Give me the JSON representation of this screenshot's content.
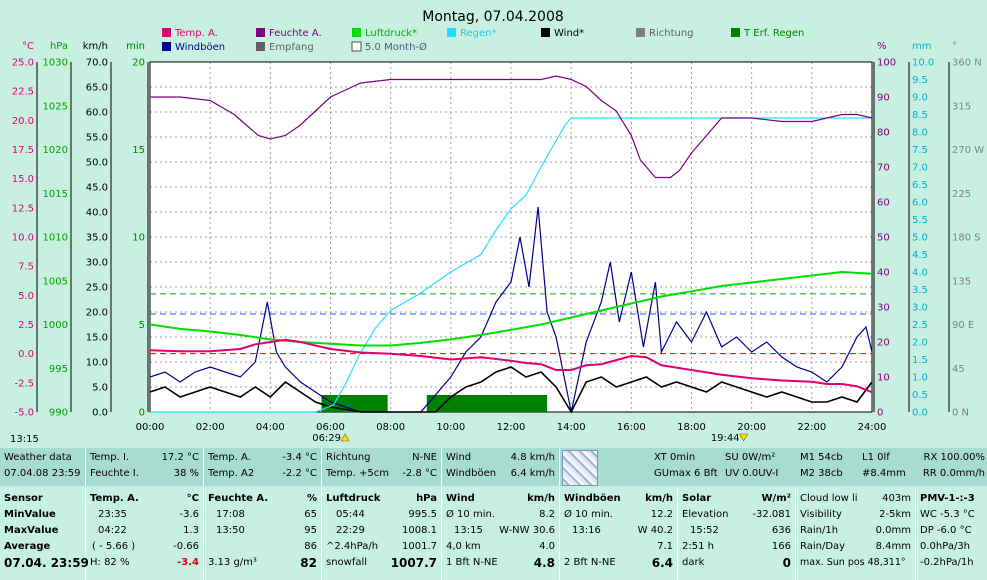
{
  "chart_data": {
    "type": "line",
    "title": "Montag, 07.04.2008",
    "x_ticks": [
      "00:00",
      "02:00",
      "04:00",
      "06:00",
      "08:00",
      "10:00",
      "12:00",
      "14:00",
      "16:00",
      "18:00",
      "20:00",
      "22:00",
      "24:00"
    ],
    "axes": {
      "temp": {
        "unit": "°C",
        "ticks": [
          "-5.0",
          "-2.5",
          "0.0",
          "2.5",
          "5.0",
          "7.5",
          "10.0",
          "12.5",
          "15.0",
          "17.5",
          "20.0",
          "22.5",
          "25.0"
        ],
        "color": "#e0006e"
      },
      "pressure": {
        "unit": "hPa",
        "ticks": [
          "990",
          "995",
          "1000",
          "1005",
          "1010",
          "1015",
          "1020",
          "1025",
          "1030"
        ],
        "color": "#00a000"
      },
      "wind": {
        "unit": "km/h",
        "ticks": [
          "0.0",
          "5.0",
          "10.0",
          "15.0",
          "20.0",
          "25.0",
          "30.0",
          "35.0",
          "40.0",
          "45.0",
          "50.0",
          "55.0",
          "60.0",
          "65.0",
          "70.0"
        ],
        "color": "#000000"
      },
      "minutes": {
        "unit": "min",
        "ticks": [
          "0",
          "5",
          "10",
          "15",
          "20"
        ],
        "color": "#008000"
      },
      "humidity": {
        "unit": "%",
        "ticks": [
          "0",
          "10",
          "20",
          "30",
          "40",
          "50",
          "60",
          "70",
          "80",
          "90",
          "100"
        ],
        "color": "#800080"
      },
      "rain": {
        "unit": "mm",
        "ticks": [
          "0.0",
          "0.5",
          "1.0",
          "1.5",
          "2.0",
          "2.5",
          "3.0",
          "3.5",
          "4.0",
          "4.5",
          "5.0",
          "5.5",
          "6.0",
          "6.5",
          "7.0",
          "7.5",
          "8.0",
          "8.5",
          "9.0",
          "9.5",
          "10.0"
        ],
        "color": "#00b0d0"
      },
      "direction": {
        "unit": "°",
        "ticks": [
          "0 N",
          "45",
          "90 E",
          "135",
          "180 S",
          "225",
          "270 W",
          "315",
          "360 N"
        ],
        "color": "#808080"
      }
    },
    "legend": [
      {
        "name": "Temp. A.",
        "color": "#e0006e"
      },
      {
        "name": "Feuchte A.",
        "color": "#800080"
      },
      {
        "name": "Luftdruck*",
        "color": "#00e000"
      },
      {
        "name": "Regen*",
        "color": "#20e0ff"
      },
      {
        "name": "Wind*",
        "color": "#000000"
      },
      {
        "name": "Richtung",
        "color": "#808080"
      },
      {
        "name": "T Erf. Regen",
        "color": "#008000"
      },
      {
        "name": "Windböen",
        "color": "#000090"
      },
      {
        "name": "Empfang",
        "color": "#606060"
      },
      {
        "name": "5.0 Month-Ø",
        "color": "#ffffff"
      }
    ],
    "series": [
      {
        "name": "Temp. A.",
        "axis": "temp",
        "color": "#e0006e",
        "x": [
          0,
          1,
          2,
          3,
          3.5,
          4,
          4.5,
          5,
          6,
          7,
          8,
          9,
          10,
          11,
          12,
          12.5,
          13,
          13.5,
          14,
          14.5,
          15,
          16,
          16.5,
          17,
          18,
          19,
          20,
          21,
          22,
          22.5,
          23,
          23.5,
          24
        ],
        "values": [
          0.3,
          0.2,
          0.2,
          0.4,
          0.8,
          1.0,
          1.2,
          1.0,
          0.4,
          0.1,
          0.0,
          -0.2,
          -0.5,
          -0.3,
          -0.6,
          -0.8,
          -0.9,
          -1.4,
          -1.4,
          -1.0,
          -0.9,
          -0.2,
          -0.3,
          -1.0,
          -1.4,
          -1.8,
          -2.1,
          -2.3,
          -2.4,
          -2.6,
          -2.6,
          -2.8,
          -3.3
        ]
      },
      {
        "name": "Feuchte A.",
        "axis": "humidity",
        "color": "#800080",
        "x": [
          0,
          1,
          2,
          2.8,
          3.2,
          3.6,
          4,
          4.5,
          5,
          5.5,
          6,
          6.5,
          7,
          8,
          9,
          10,
          11,
          12,
          13,
          13.5,
          14,
          14.5,
          15,
          15.5,
          16,
          16.3,
          16.8,
          17.3,
          17.6,
          18,
          18.5,
          19,
          20,
          21,
          22,
          23,
          23.5,
          24
        ],
        "values": [
          90,
          90,
          89,
          85,
          82,
          79,
          78,
          79,
          82,
          86,
          90,
          92,
          94,
          95,
          95,
          95,
          95,
          95,
          95,
          96,
          95,
          93,
          89,
          86,
          79,
          72,
          67,
          67,
          69,
          74,
          79,
          84,
          84,
          83,
          83,
          85,
          85,
          84
        ]
      },
      {
        "name": "Luftdruck*",
        "axis": "pressure",
        "color": "#00e000",
        "x": [
          0,
          1,
          2,
          3,
          4,
          5,
          6,
          7,
          8,
          9,
          10,
          11,
          12,
          13,
          14,
          15,
          16,
          17,
          18,
          19,
          20,
          21,
          22,
          23,
          24
        ],
        "values": [
          1000.0,
          999.5,
          999.2,
          998.8,
          998.3,
          998.0,
          997.8,
          997.6,
          997.6,
          997.9,
          998.3,
          998.8,
          999.4,
          1000.0,
          1000.8,
          1001.6,
          1002.4,
          1003.2,
          1003.8,
          1004.4,
          1004.8,
          1005.2,
          1005.6,
          1006.0,
          1005.8
        ]
      },
      {
        "name": "Regen*",
        "axis": "rain",
        "color": "#20e0ff",
        "x": [
          0,
          5.5,
          6.1,
          6.5,
          7,
          7.5,
          8,
          9,
          10,
          11,
          11.5,
          12,
          12.5,
          13,
          13.4,
          13.8,
          14,
          15,
          16,
          17,
          18,
          19,
          20,
          21,
          22,
          23,
          24
        ],
        "values": [
          0,
          0,
          0.2,
          0.8,
          1.7,
          2.4,
          2.9,
          3.4,
          4.0,
          4.5,
          5.2,
          5.8,
          6.2,
          7.0,
          7.6,
          8.2,
          8.4,
          8.4,
          8.4,
          8.4,
          8.4,
          8.4,
          8.4,
          8.4,
          8.4,
          8.4,
          8.4
        ]
      },
      {
        "name": "Wind*",
        "axis": "wind",
        "color": "#000000",
        "x": [
          0,
          0.5,
          1,
          1.5,
          2,
          2.5,
          3,
          3.5,
          4,
          4.5,
          5,
          5.5,
          6,
          6.5,
          7,
          7.5,
          8,
          8.5,
          9,
          9.5,
          10,
          10.5,
          11,
          11.5,
          12,
          12.5,
          13,
          13.5,
          14,
          14.5,
          15,
          15.5,
          16,
          16.5,
          17,
          17.5,
          18,
          18.5,
          19,
          19.5,
          20,
          20.5,
          21,
          21.5,
          22,
          22.5,
          23,
          23.5,
          24
        ],
        "values": [
          4,
          5,
          3,
          4,
          5,
          4,
          3,
          5,
          3,
          6,
          4,
          2,
          1,
          0.5,
          0,
          0,
          0,
          0,
          0,
          0,
          3,
          5,
          6,
          8,
          9,
          7,
          8,
          5,
          0,
          6,
          7,
          5,
          6,
          7,
          5,
          6,
          5,
          4,
          6,
          5,
          4,
          3,
          4,
          3,
          2,
          2,
          3,
          2,
          6
        ]
      },
      {
        "name": "Windböen",
        "axis": "wind",
        "color": "#000090",
        "x": [
          0,
          0.5,
          1,
          1.5,
          2,
          2.5,
          3,
          3.5,
          3.9,
          4.2,
          4.5,
          5,
          5.5,
          6,
          6.5,
          7,
          8,
          9,
          10,
          10.5,
          11,
          11.5,
          12,
          12.3,
          12.6,
          12.9,
          13.2,
          13.5,
          14,
          14.5,
          15,
          15.3,
          15.6,
          16,
          16.4,
          16.8,
          17,
          17.5,
          18,
          18.5,
          19,
          19.5,
          20,
          20.5,
          21,
          21.5,
          22,
          22.5,
          23,
          23.5,
          23.8,
          24
        ],
        "values": [
          7,
          8,
          6,
          8,
          9,
          8,
          7,
          10,
          22,
          12,
          9,
          6,
          4,
          2,
          1,
          0,
          0,
          0,
          7,
          12,
          15,
          22,
          26,
          35,
          25,
          41,
          20,
          15,
          0,
          14,
          22,
          30,
          18,
          28,
          13,
          26,
          12,
          18,
          14,
          20,
          13,
          15,
          12,
          14,
          11,
          9,
          8,
          6,
          9,
          15,
          17,
          12
        ]
      }
    ],
    "bands": {
      "t_erf_regen": [
        [
          5.7,
          7.9
        ],
        [
          9.2,
          13.2
        ]
      ],
      "dashed_refs": [
        {
          "axis": "pressure",
          "value": 1003.5,
          "color": "#00b000"
        },
        {
          "axis": "temp",
          "value": 3.4,
          "color": "#2060ff"
        },
        {
          "axis": "temp",
          "value": 0.0,
          "color": "#e00000"
        }
      ]
    },
    "sun_markers": {
      "sunrise": "06:29",
      "sunset": "19:44",
      "start": "13:15"
    }
  },
  "panel": {
    "weather": {
      "title": "Weather data",
      "date": "07.04.08 23:59"
    },
    "inside": {
      "temp_label": "Temp. I.",
      "temp_value": "17.2 °C",
      "hum_label": "Feuchte I.",
      "hum_value": "38 %"
    },
    "outside": {
      "temp_label": "Temp. A.",
      "temp_value": "-3.4 °C",
      "temp2_label": "Temp. A2",
      "temp2_value": "-2.2 °C"
    },
    "direction": {
      "label": "Richtung",
      "value": "N-NE",
      "ground_label": "Temp. +5cm",
      "ground_value": "-2.8 °C"
    },
    "wind": {
      "label": "Wind",
      "value": "4.8 km/h",
      "gust_label": "Windböen",
      "gust_value": "6.4 km/h"
    },
    "forecast": {
      "xt": "XT 0min",
      "su": "SU 0W/m²",
      "gu": "GUmax 6 Bft",
      "uv": "UV 0.0UV-I"
    },
    "moon": {
      "m1": "M1 54cb",
      "m2": "M2 38cb",
      "l1": "L1 0lf",
      "h8": "#8.4mm"
    },
    "rx": {
      "rx": "RX 100.00%",
      "rr": "RR 0.0mm/h"
    },
    "sensor": {
      "title": "Sensor",
      "min": "MinValue",
      "max": "MaxValue",
      "avg": "Average",
      "now": "07.04. 23:59"
    },
    "temp": {
      "title": "Temp. A.",
      "unit": "°C",
      "min_time": "23:35",
      "min_val": "-3.6",
      "max_time": "04:22",
      "max_val": "1.3",
      "avg_extra": "( - 5.66 )",
      "avg_val": "-0.66",
      "now_extra": "H: 82 %",
      "now_val": "-3.4"
    },
    "hum": {
      "title": "Feuchte A.",
      "unit": "%",
      "min_time": "17:08",
      "min_val": "65",
      "max_time": "13:50",
      "max_val": "95",
      "avg_val": "86",
      "now_extra": "3.13 g/m³",
      "now_val": "82"
    },
    "press": {
      "title": "Luftdruck",
      "unit": "hPa",
      "min_time": "05:44",
      "min_val": "995.5",
      "max_time": "22:29",
      "max_val": "1008.1",
      "avg_extra": "^2.4hPa/h",
      "avg_val": "1001.7",
      "now_extra": "snowfall",
      "now_val": "1007.7"
    },
    "windstats": {
      "title": "Wind",
      "unit": "km/h",
      "r1_l": "Ø 10 min.",
      "r1_v": "8.2",
      "r2_l": "13:15",
      "r2_m": "W-NW 30.6",
      "r3_l": "4,0 km",
      "r3_v": "4.0",
      "r4_l": "1 Bft N-NE",
      "r4_v": "4.8"
    },
    "guststats": {
      "title": "Windböen",
      "unit": "km/h",
      "r1_l": "Ø 10 min.",
      "r1_v": "12.2",
      "r2_l": "13:16",
      "r2_m": "W 40.2",
      "r3_v": "7.1",
      "r4_l": "2 Bft N-NE",
      "r4_v": "6.4"
    },
    "solar": {
      "title": "Solar",
      "unit": "W/m²",
      "r1_l": "Elevation",
      "r1_v": "-32.081",
      "r2_l": "15:52",
      "r2_v": "636",
      "r3_l": "2:51 h",
      "r3_v": "166",
      "r4_l": "dark",
      "r4_v": "0"
    },
    "cloud": {
      "r1_l": "Cloud low li",
      "r1_v": "403m",
      "r2_l": "Visibility",
      "r2_v": "2-5km",
      "r3_l": "Rain/1h",
      "r3_v": "0.0mm",
      "r4_l": "Rain/Day",
      "r4_v": "8.4mm",
      "r5": "max. Sun pos 48,311°"
    },
    "pmv": {
      "title": "PMV-1-:-3",
      "r1": "WC -5.3 °C",
      "r2": "DP -6.0 °C",
      "r3": "0.0hPa/3h",
      "r4": "-0.2hPa/1h"
    }
  }
}
